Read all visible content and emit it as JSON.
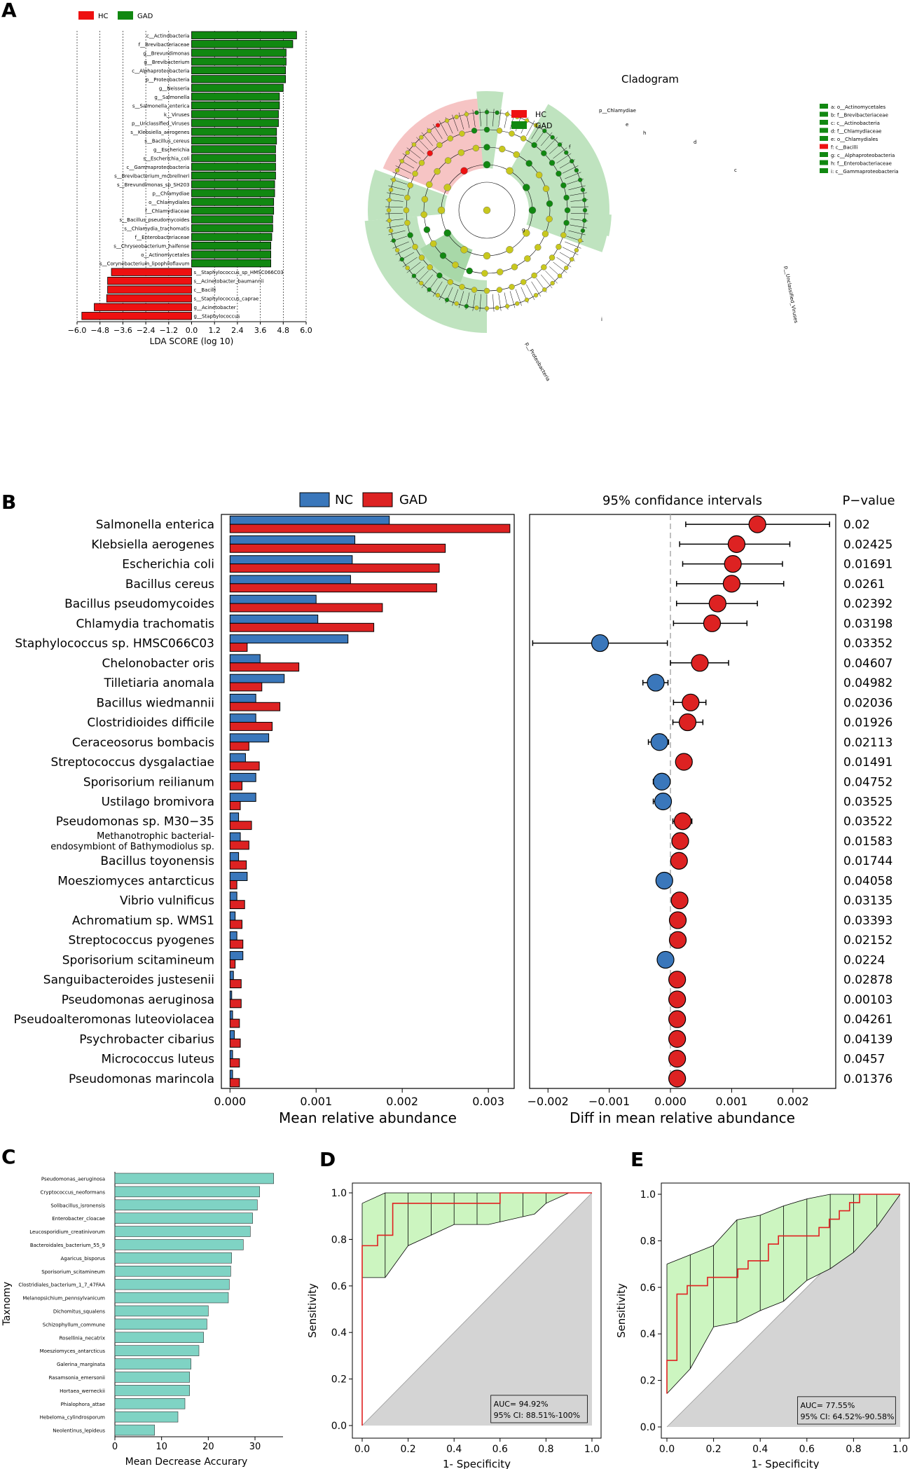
{
  "panels": {
    "a": "A",
    "b": "B",
    "c": "C",
    "d": "D",
    "e": "E"
  },
  "colors": {
    "hc": "#ee1111",
    "gad": "#118811",
    "nc": "#3a77bb",
    "gad_b": "#dd2222",
    "teal": "#7fd3c4",
    "roc_line": "#e02020",
    "roc_fill": "#ccf5c0",
    "gray": "#d4d4d4",
    "clado_red": "#f6c4c4",
    "clado_green": "#bfe3bf",
    "node_yellow": "#c8c81e"
  },
  "cladogram": {
    "title": "Cladogram",
    "legend": [
      {
        "name": "HC",
        "color": "#ee1111"
      },
      {
        "name": "GAD",
        "color": "#118811"
      }
    ],
    "key": [
      {
        "text": "a: o__Actinomycetales",
        "color": "#118811"
      },
      {
        "text": "b: f__Brevibacteriaceae",
        "color": "#118811"
      },
      {
        "text": "c: c__Actinobacteria",
        "color": "#118811"
      },
      {
        "text": "d: f__Chlamydiaceae",
        "color": "#118811"
      },
      {
        "text": "e: o__Chlamydiales",
        "color": "#118811"
      },
      {
        "text": "f: c__Bacilli",
        "color": "#ee1111"
      },
      {
        "text": "g: c__Alphaproteobacteria",
        "color": "#118811"
      },
      {
        "text": "h: f__Enterobacteriaceae",
        "color": "#118811"
      },
      {
        "text": "i: c__Gammaproteobacteria",
        "color": "#118811"
      }
    ],
    "sector_labels": [
      "p__Chlamydiae",
      "p__Unclassified_Viruses",
      "p__Proteobacteria",
      "f",
      "c",
      "g",
      "e",
      "i",
      "h",
      "d"
    ]
  },
  "chart_data": [
    {
      "type": "bar",
      "panel": "A",
      "orientation": "horizontal",
      "legend": [
        {
          "name": "HC",
          "color": "#ee1111"
        },
        {
          "name": "GAD",
          "color": "#118811"
        }
      ],
      "categories": [
        "c__Actinobacteria",
        "f__Brevibacteriaceae",
        "g__Brevundimonas",
        "g__Brevibacterium",
        "c__Alphaproteobacteria",
        "p__Proteobacteria",
        "g__Neisseria",
        "g__Salmonella",
        "s__Salmonella_enterica",
        "k__Viruses",
        "p__Unclassified_Viruses",
        "s__Klebsiella_aerogenes",
        "s__Bacillus_cereus",
        "g__Escherichia",
        "s__Escherichia_coli",
        "c__Gammaproteobacteria",
        "s__Brevibacterium_mcbrellneri",
        "s__Brevundimonas_sp_SH203",
        "p__Chlamydiae",
        "o__Chlamydiales",
        "f__Chlamydiaceae",
        "s__Bacillus_pseudomycoides",
        "s__Chlamydia_trachomatis",
        "f__Enterobacteriaceae",
        "s__Chryseobacterium_haifense",
        "o__Actinomycetales",
        "s__Corynebacterium_lipophiloflavum",
        "s__Staphylococcus_sp_HMSC066C03",
        "s__Acinetobacter_baumannii",
        "c__Bacilli",
        "s__Staphylococcus_caprae",
        "g__Acinetobacter",
        "g__Staphylococcus"
      ],
      "values": [
        5.5,
        5.3,
        4.95,
        4.95,
        4.92,
        4.92,
        4.8,
        4.6,
        4.6,
        4.55,
        4.55,
        4.45,
        4.45,
        4.4,
        4.4,
        4.4,
        4.4,
        4.35,
        4.35,
        4.3,
        4.3,
        4.25,
        4.25,
        4.2,
        4.15,
        4.15,
        4.15,
        -4.2,
        -4.4,
        -4.4,
        -4.45,
        -5.1,
        -5.75
      ],
      "groups": [
        "GAD",
        "GAD",
        "GAD",
        "GAD",
        "GAD",
        "GAD",
        "GAD",
        "GAD",
        "GAD",
        "GAD",
        "GAD",
        "GAD",
        "GAD",
        "GAD",
        "GAD",
        "GAD",
        "GAD",
        "GAD",
        "GAD",
        "GAD",
        "GAD",
        "GAD",
        "GAD",
        "GAD",
        "GAD",
        "GAD",
        "GAD",
        "HC",
        "HC",
        "HC",
        "HC",
        "HC",
        "HC"
      ],
      "xlabel": "LDA SCORE (log 10)",
      "xlim": [
        -6.0,
        6.0
      ],
      "xticks": [
        -6.0,
        -4.8,
        -3.6,
        -2.4,
        -1.2,
        0.0,
        1.2,
        2.4,
        3.6,
        4.8,
        6.0
      ],
      "xtick_labels": [
        "−6.0",
        "−4.8",
        "−3.6",
        "−2.4",
        "−1.2",
        "0.0",
        "1.2",
        "2.4",
        "3.6",
        "4.8",
        "6.0"
      ],
      "grid": "vertical dashed"
    },
    {
      "type": "bar",
      "panel": "B-left",
      "orientation": "horizontal",
      "legend": [
        {
          "name": "NC",
          "color": "#3a77bb"
        },
        {
          "name": "GAD",
          "color": "#dd2222"
        }
      ],
      "categories": [
        "Salmonella enterica",
        "Klebsiella aerogenes",
        "Escherichia coli",
        "Bacillus cereus",
        "Bacillus pseudomycoides",
        "Chlamydia trachomatis",
        "Staphylococcus sp. HMSC066C03",
        "Chelonobacter oris",
        "Tilletiaria anomala",
        "Bacillus wiedmannii",
        "Clostridioides difficile",
        "Ceraceosorus bombacis",
        "Streptococcus dysgalactiae",
        "Sporisorium reilianum",
        "Ustilago bromivora",
        "Pseudomonas sp. M30−35",
        "Methanotrophic bacterial-endosymbiont of Bathymodiolus sp.",
        "Bacillus toyonensis",
        "Moesziomyces antarcticus",
        "Vibrio vulnificus",
        "Achromatium sp. WMS1",
        "Streptococcus pyogenes",
        "Sporisorium scitamineum",
        "Sanguibacteroides justesenii",
        "Pseudomonas aeruginosa",
        "Pseudoalteromonas luteoviolacea",
        "Psychrobacter cibarius",
        "Micrococcus luteus",
        "Pseudomonas marincola"
      ],
      "series": [
        {
          "name": "NC",
          "values": [
            0.00185,
            0.00145,
            0.00142,
            0.0014,
            0.001,
            0.00102,
            0.00137,
            0.00035,
            0.00063,
            0.0003,
            0.0003,
            0.00045,
            0.00018,
            0.0003,
            0.0003,
            0.0001,
            0.00012,
            0.0001,
            0.0002,
            8e-05,
            6e-05,
            8e-05,
            0.00015,
            4e-05,
            2e-05,
            3e-05,
            5e-05,
            3e-05,
            3e-05
          ]
        },
        {
          "name": "GAD",
          "values": [
            0.00325,
            0.0025,
            0.00243,
            0.0024,
            0.00177,
            0.00167,
            0.0002,
            0.0008,
            0.00037,
            0.00058,
            0.00049,
            0.00022,
            0.00034,
            0.00014,
            0.00012,
            0.00025,
            0.00022,
            0.00019,
            8e-05,
            0.00017,
            0.00014,
            0.00015,
            6e-05,
            0.00013,
            0.00013,
            0.00011,
            0.00012,
            0.00011,
            0.00011
          ]
        }
      ],
      "xlabel": "Mean relative abundance",
      "xlim": [
        -0.0001,
        0.0033
      ],
      "xticks": [
        0,
        0.001,
        0.002,
        0.003
      ],
      "xtick_labels": [
        "0.000",
        "0.001",
        "0.002",
        "0.003"
      ]
    },
    {
      "type": "scatter",
      "panel": "B-right",
      "title": "95% confidance intervals",
      "pvalue_header": "P−value",
      "diff": [
        0.00142,
        0.00108,
        0.00102,
        0.001,
        0.00077,
        0.00068,
        -0.00115,
        0.00048,
        -0.00024,
        0.00033,
        0.00028,
        -0.00018,
        0.00022,
        -0.00014,
        -0.00012,
        0.0002,
        0.00016,
        0.00014,
        -0.0001,
        0.00015,
        0.00012,
        0.00012,
        -8e-05,
        0.00011,
        0.00011,
        0.00011,
        0.00011,
        0.00011,
        0.00011
      ],
      "ci_low": [
        0.00025,
        0.00015,
        0.0002,
        0.0001,
        0.0001,
        5e-05,
        -0.00225,
        0.0,
        -0.00045,
        5e-05,
        4e-05,
        -0.00036,
        0.0001,
        -0.00028,
        -0.00028,
        4e-05,
        3e-05,
        2e-05,
        -0.00022,
        6e-05,
        4e-05,
        4e-05,
        -0.00018,
        3e-05,
        3e-05,
        3e-05,
        3e-05,
        3e-05,
        3e-05
      ],
      "ci_high": [
        0.0026,
        0.00195,
        0.00183,
        0.00185,
        0.00142,
        0.00125,
        -5e-05,
        0.00095,
        -4e-05,
        0.00058,
        0.00053,
        -3e-05,
        0.00035,
        -2e-05,
        -2e-05,
        0.00035,
        0.00029,
        0.00026,
        0.0,
        0.00024,
        0.0002,
        0.0002,
        0.0,
        0.00019,
        0.00019,
        0.00019,
        0.00019,
        0.00019,
        0.00019
      ],
      "pvalues": [
        "0.02",
        "0.02425",
        "0.01691",
        "0.0261",
        "0.02392",
        "0.03198",
        "0.03352",
        "0.04607",
        "0.04982",
        "0.02036",
        "0.01926",
        "0.02113",
        "0.01491",
        "0.04752",
        "0.03525",
        "0.03522",
        "0.01583",
        "0.01744",
        "0.04058",
        "0.03135",
        "0.03393",
        "0.02152",
        "0.0224",
        "0.02878",
        "0.00103",
        "0.04261",
        "0.04139",
        "0.0457",
        "0.01376"
      ],
      "xlabel": "Diff in mean relative abundance",
      "xlim": [
        -0.0023,
        0.0027
      ],
      "xticks": [
        -0.002,
        -0.001,
        0,
        0.001,
        0.002
      ],
      "xtick_labels": [
        "−0.002",
        "−0.001",
        "0.000",
        "0.001",
        "0.002"
      ]
    },
    {
      "type": "bar",
      "panel": "C",
      "orientation": "horizontal",
      "categories": [
        "Pseudomonas_aeruginosa",
        "Cryptococcus_neoformans",
        "Solibacillus_isronensis",
        "Enterobacter_cloacae",
        "Leucosporidium_creatinivorum",
        "Bacteroidales_bacterium_55_9",
        "Agaricus_bisporus",
        "Sporisorium_scitamineum",
        "Clostridiales_bacterium_1_7_47FAA",
        "Melanopsichium_pennsylvanicum",
        "Dichomitus_squalens",
        "Schizophyllum_commune",
        "Rosellinia_necatrix",
        "Moesziomyces_antarcticus",
        "Galerina_marginata",
        "Rasamsonia_emersonii",
        "Hortaea_werneckii",
        "Phialophora_attae",
        "Hebeloma_cylindrosporum",
        "Neolentinus_lepideus"
      ],
      "values": [
        34,
        31,
        30.5,
        29.5,
        29,
        27.5,
        25,
        24.8,
        24.5,
        24.3,
        20,
        19.7,
        19,
        18,
        16.3,
        16,
        16,
        15,
        13.5,
        8.5
      ],
      "xlabel": "Mean Decrease Accurary",
      "ylabel": "Taxnomy",
      "xlim": [
        0,
        36
      ],
      "xticks": [
        0,
        10,
        20,
        30
      ],
      "xtick_labels": [
        "0",
        "10",
        "20",
        "30"
      ]
    },
    {
      "type": "line",
      "panel": "D",
      "roc": [
        [
          0,
          0
        ],
        [
          0,
          0.636
        ],
        [
          0,
          0.773
        ],
        [
          0.067,
          0.773
        ],
        [
          0.067,
          0.818
        ],
        [
          0.133,
          0.818
        ],
        [
          0.133,
          0.909
        ],
        [
          0.133,
          0.955
        ],
        [
          0.167,
          0.955
        ],
        [
          0.167,
          0.955
        ],
        [
          0.6,
          0.955
        ],
        [
          0.6,
          1.0
        ],
        [
          1.0,
          1.0
        ]
      ],
      "ci_upper": [
        [
          0,
          0.955
        ],
        [
          0.1,
          1.0
        ],
        [
          1.0,
          1.0
        ]
      ],
      "ci_lower": [
        [
          0,
          0.636
        ],
        [
          0.1,
          0.636
        ],
        [
          0.2,
          0.773
        ],
        [
          0.3,
          0.818
        ],
        [
          0.4,
          0.864
        ],
        [
          0.55,
          0.864
        ],
        [
          0.75,
          0.909
        ],
        [
          0.8,
          0.955
        ],
        [
          0.9,
          1.0
        ],
        [
          1.0,
          1.0
        ]
      ],
      "ci_steps": [
        0,
        0.1,
        0.2,
        0.3,
        0.4,
        0.5,
        0.6,
        0.7,
        0.8
      ],
      "auc_text": "AUC= 94.92%",
      "ci_text": "95% CI: 88.51%-100%",
      "xlabel": "1- Specificity",
      "ylabel": "Sensitivity",
      "xlim": [
        0,
        1
      ],
      "ylim": [
        0,
        1
      ],
      "xticks": [
        0,
        0.2,
        0.4,
        0.6,
        0.8,
        1.0
      ],
      "xtick_labels": [
        "0.0",
        "0.2",
        "0.4",
        "0.6",
        "0.8",
        "1.0"
      ],
      "yticks": [
        0,
        0.2,
        0.4,
        0.6,
        0.8,
        1.0
      ],
      "ytick_labels": [
        "0.0",
        "0.2",
        "0.4",
        "0.6",
        "0.8",
        "1.0"
      ]
    },
    {
      "type": "line",
      "panel": "E",
      "roc": [
        [
          0,
          0.143
        ],
        [
          0,
          0.286
        ],
        [
          0.043,
          0.286
        ],
        [
          0.043,
          0.571
        ],
        [
          0.087,
          0.571
        ],
        [
          0.087,
          0.607
        ],
        [
          0.174,
          0.607
        ],
        [
          0.174,
          0.643
        ],
        [
          0.304,
          0.643
        ],
        [
          0.304,
          0.679
        ],
        [
          0.348,
          0.679
        ],
        [
          0.348,
          0.714
        ],
        [
          0.435,
          0.714
        ],
        [
          0.435,
          0.786
        ],
        [
          0.478,
          0.786
        ],
        [
          0.478,
          0.821
        ],
        [
          0.652,
          0.821
        ],
        [
          0.652,
          0.857
        ],
        [
          0.696,
          0.857
        ],
        [
          0.696,
          0.893
        ],
        [
          0.739,
          0.893
        ],
        [
          0.739,
          0.929
        ],
        [
          0.783,
          0.929
        ],
        [
          0.783,
          0.964
        ],
        [
          0.826,
          0.964
        ],
        [
          0.826,
          1.0
        ],
        [
          1.0,
          1.0
        ]
      ],
      "ci_upper": [
        [
          0,
          0.7
        ],
        [
          0.1,
          0.74
        ],
        [
          0.2,
          0.78
        ],
        [
          0.3,
          0.89
        ],
        [
          0.4,
          0.91
        ],
        [
          0.5,
          0.95
        ],
        [
          0.6,
          0.98
        ],
        [
          0.7,
          1.0
        ],
        [
          1.0,
          1.0
        ]
      ],
      "ci_lower": [
        [
          0,
          0.143
        ],
        [
          0.1,
          0.25
        ],
        [
          0.2,
          0.43
        ],
        [
          0.3,
          0.45
        ],
        [
          0.4,
          0.5
        ],
        [
          0.5,
          0.54
        ],
        [
          0.6,
          0.63
        ],
        [
          0.7,
          0.68
        ],
        [
          0.8,
          0.75
        ],
        [
          0.9,
          0.86
        ],
        [
          1.0,
          1.0
        ]
      ],
      "ci_steps": [
        0,
        0.1,
        0.2,
        0.3,
        0.4,
        0.5,
        0.6,
        0.7,
        0.8,
        0.9
      ],
      "auc_text": "AUC= 77.55%",
      "ci_text": "95% CI: 64.52%-90.58%",
      "xlabel": "1- Specificity",
      "ylabel": "Sensitivity",
      "xlim": [
        0,
        1
      ],
      "ylim": [
        0,
        1
      ],
      "xticks": [
        0,
        0.2,
        0.4,
        0.6,
        0.8,
        1.0
      ],
      "xtick_labels": [
        "0.0",
        "0.2",
        "0.4",
        "0.6",
        "0.8",
        "1.0"
      ],
      "yticks": [
        0,
        0.2,
        0.4,
        0.6,
        0.8,
        1.0
      ],
      "ytick_labels": [
        "0.0",
        "0.2",
        "0.4",
        "0.6",
        "0.8",
        "1.0"
      ]
    }
  ]
}
